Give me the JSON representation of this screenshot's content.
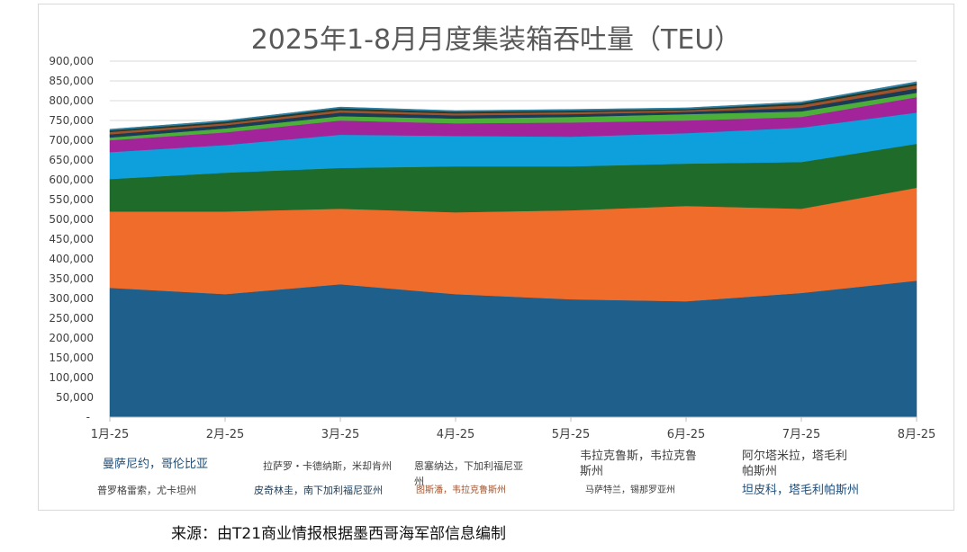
{
  "chart_data": {
    "type": "area",
    "stacked": true,
    "title": "2025年1-8月月度集装箱吞吐量（TEU）",
    "categories": [
      "1月-25",
      "2月-25",
      "3月-25",
      "4月-25",
      "5月-25",
      "6月-25",
      "7月-25",
      "8月-25"
    ],
    "ylim": [
      0,
      900000
    ],
    "yticks": [
      "-",
      "50,000",
      "100,000",
      "150,000",
      "200,000",
      "250,000",
      "300,000",
      "350,000",
      "400,000",
      "450,000",
      "500,000",
      "550,000",
      "600,000",
      "650,000",
      "700,000",
      "750,000",
      "800,000",
      "850,000",
      "900,000"
    ],
    "grid": true,
    "legend_position": "bottom",
    "series": [
      {
        "name": "曼萨尼约，哥伦比亚",
        "color": "#1f5f8b",
        "values": [
          327000,
          311000,
          336000,
          311000,
          298000,
          293000,
          314000,
          345000
        ]
      },
      {
        "name": "拉萨罗・卡德纳斯，米却肯州",
        "color": "#ef6c2a",
        "values": [
          193000,
          209000,
          191000,
          207000,
          225000,
          241000,
          213000,
          235000
        ]
      },
      {
        "name": "韦拉克鲁斯，韦拉克鲁斯州",
        "color": "#1e6b2a",
        "values": [
          82000,
          98000,
          103000,
          116000,
          111000,
          107000,
          118000,
          111000
        ]
      },
      {
        "name": "阿尔塔米拉，塔毛利帕斯州",
        "color": "#0ea0dc",
        "values": [
          68000,
          70000,
          84000,
          77000,
          75000,
          77000,
          87000,
          79000
        ]
      },
      {
        "name": "恩塞纳达，下加利福尼亚州",
        "color": "#a3249a",
        "values": [
          30000,
          32000,
          36000,
          32000,
          36000,
          32000,
          27000,
          39000
        ]
      },
      {
        "name": "普罗格雷索，尤卡坦州",
        "color": "#4caf3a",
        "values": [
          7000,
          10000,
          11000,
          12000,
          14000,
          16000,
          14000,
          11000
        ]
      },
      {
        "name": "皮奇林圭，南下加利福尼亚州",
        "color": "#1b3a55",
        "values": [
          8000,
          8000,
          9000,
          8000,
          7000,
          6000,
          9000,
          11000
        ]
      },
      {
        "name": "图斯潘，韦拉克鲁斯州",
        "color": "#a0522d",
        "values": [
          6000,
          5000,
          6000,
          5000,
          5000,
          4000,
          7000,
          8000
        ]
      },
      {
        "name": "马萨特兰，锡那罗亚州",
        "color": "#243b2a",
        "values": [
          4000,
          4000,
          5000,
          4000,
          4000,
          3000,
          5000,
          5000
        ]
      },
      {
        "name": "坦皮科，塔毛利帕斯州",
        "color": "#2d7fa3",
        "values": [
          3000,
          3000,
          3000,
          3000,
          3000,
          3000,
          3000,
          4000
        ]
      }
    ]
  },
  "source": "来源：由T21商业情报根据墨西哥海军部信息编制"
}
